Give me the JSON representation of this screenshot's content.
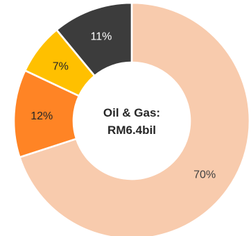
{
  "chart_data": {
    "type": "pie",
    "donut": true,
    "center_text": [
      "Oil & Gas:",
      "RM6.4bil"
    ],
    "slices": [
      {
        "label": "70%",
        "value": 70,
        "color": "#F8CBAD",
        "text_color": "#404040"
      },
      {
        "label": "12%",
        "value": 12,
        "color": "#FF8425",
        "text_color": "#262626"
      },
      {
        "label": "7%",
        "value": 7,
        "color": "#FFC000",
        "text_color": "#262626"
      },
      {
        "label": "11%",
        "value": 11,
        "color": "#3C3C3C",
        "text_color": "#FFFFFF"
      }
    ],
    "legend": "none"
  }
}
